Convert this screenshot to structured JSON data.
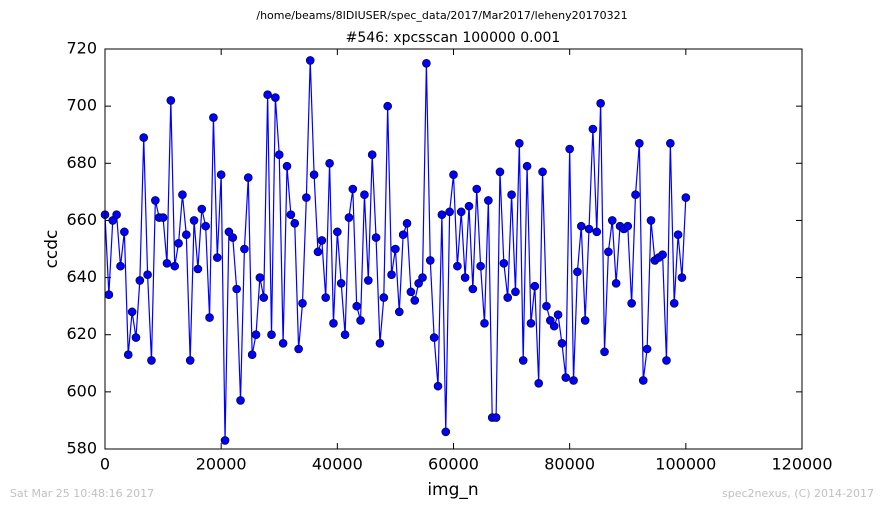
{
  "chart_data": {
    "type": "line",
    "suptitle": "/home/beams/8IDIUSER/spec_data/2017/Mar2017/leheny20170321",
    "title": "#546: xpcsscan 100000 0.001",
    "xlabel": "img_n",
    "ylabel": "ccdc",
    "footer_left": "Sat Mar 25 10:48:16 2017",
    "footer_right": "spec2nexus, (C) 2014-2017",
    "xlim": [
      0,
      120000
    ],
    "xticks": [
      0,
      20000,
      40000,
      60000,
      80000,
      100000,
      120000
    ],
    "ylim": [
      580,
      720
    ],
    "yticks": [
      580,
      600,
      620,
      640,
      660,
      680,
      700,
      720
    ],
    "grid": false,
    "x": [
      0,
      667,
      1333,
      2000,
      2667,
      3333,
      4000,
      4667,
      5333,
      6000,
      6667,
      7333,
      8000,
      8667,
      9333,
      10000,
      10667,
      11333,
      12000,
      12667,
      13333,
      14000,
      14667,
      15333,
      16000,
      16667,
      17333,
      18000,
      18667,
      19333,
      20000,
      20667,
      21333,
      22000,
      22667,
      23333,
      24000,
      24667,
      25333,
      26000,
      26667,
      27333,
      28000,
      28667,
      29333,
      30000,
      30667,
      31333,
      32000,
      32667,
      33333,
      34000,
      34667,
      35333,
      36000,
      36667,
      37333,
      38000,
      38667,
      39333,
      40000,
      40667,
      41333,
      42000,
      42667,
      43333,
      44000,
      44667,
      45333,
      46000,
      46667,
      47333,
      48000,
      48667,
      49333,
      50000,
      50667,
      51333,
      52000,
      52667,
      53333,
      54000,
      54667,
      55333,
      56000,
      56667,
      57333,
      58000,
      58667,
      59333,
      60000,
      60667,
      61333,
      62000,
      62667,
      63333,
      64000,
      64667,
      65333,
      66000,
      66667,
      67333,
      68000,
      68667,
      69333,
      70000,
      70667,
      71333,
      72000,
      72667,
      73333,
      74000,
      74667,
      75333,
      76000,
      76667,
      77333,
      78000,
      78667,
      79333,
      80000,
      80667,
      81333,
      82000,
      82667,
      83333,
      84000,
      84667,
      85333,
      86000,
      86667,
      87333,
      88000,
      88667,
      89333,
      90000,
      90667,
      91333,
      92000,
      92667,
      93333,
      94000,
      94667,
      95333,
      96000,
      96667,
      97333,
      98000,
      98667,
      99333,
      100000
    ],
    "series": [
      {
        "color": "#0000ff",
        "values": [
          662,
          634,
          660,
          662,
          644,
          656,
          613,
          628,
          619,
          639,
          689,
          641,
          611,
          667,
          661,
          661,
          645,
          702,
          644,
          652,
          669,
          655,
          611,
          660,
          643,
          664,
          658,
          626,
          696,
          647,
          676,
          583,
          656,
          654,
          636,
          597,
          650,
          675,
          613,
          620,
          640,
          633,
          704,
          620,
          703,
          683,
          617,
          679,
          662,
          659,
          615,
          631,
          668,
          716,
          676,
          649,
          653,
          633,
          680,
          624,
          656,
          638,
          620,
          661,
          671,
          630,
          625,
          669,
          639,
          683,
          654,
          617,
          633,
          700,
          641,
          650,
          628,
          655,
          659,
          635,
          632,
          638,
          640,
          715,
          646,
          619,
          602,
          662,
          586,
          663,
          676,
          644,
          663,
          640,
          665,
          636,
          671,
          644,
          624,
          667,
          591,
          591,
          677,
          645,
          633,
          669,
          635,
          687,
          611,
          679,
          624,
          637,
          603,
          677,
          630,
          625,
          623,
          627,
          617,
          605,
          685,
          604,
          642,
          658,
          625,
          657,
          692,
          656,
          701,
          614,
          649,
          660,
          638,
          658,
          657,
          658,
          631,
          669,
          687,
          604,
          615,
          660,
          646,
          647,
          648,
          611,
          687,
          631,
          655,
          640,
          668
        ]
      }
    ]
  }
}
